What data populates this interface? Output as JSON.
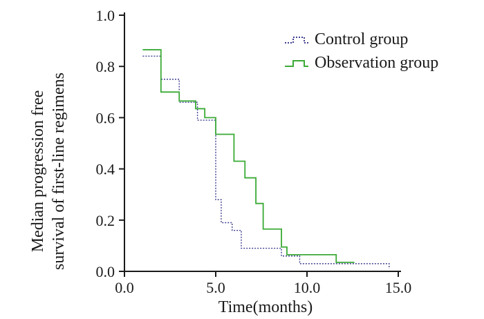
{
  "chart_data": {
    "type": "line",
    "subtype": "step (Kaplan-Meier survival curve)",
    "title": "",
    "xlabel": "Time(months)",
    "ylabel_lines": [
      "Median progression free",
      "survival of first-line regimens"
    ],
    "xlim": [
      0,
      15
    ],
    "ylim": [
      0,
      1.0
    ],
    "xticks": [
      0,
      5,
      10,
      15
    ],
    "xtick_labels": [
      "0.0",
      "5.0",
      "10.0",
      "15.0"
    ],
    "yticks": [
      0,
      0.2,
      0.4,
      0.6,
      0.8,
      1.0
    ],
    "ytick_labels": [
      "0.0",
      "0.2",
      "0.4",
      "0.6",
      "0.8",
      "1.0"
    ],
    "grid": false,
    "legend_position": "top-right",
    "series": [
      {
        "name": "Control group",
        "color": "#3d3d8f",
        "style": "dotted",
        "x": [
          1.0,
          2.0,
          3.0,
          4.0,
          5.0,
          5.3,
          5.9,
          6.4,
          8.6,
          9.6,
          14.5
        ],
        "y": [
          0.84,
          0.75,
          0.66,
          0.59,
          0.28,
          0.19,
          0.16,
          0.09,
          0.06,
          0.03,
          0.01
        ]
      },
      {
        "name": "Observation group",
        "color": "#3aaa35",
        "style": "solid",
        "x": [
          1.0,
          2.0,
          3.0,
          3.9,
          4.4,
          5.0,
          6.0,
          6.6,
          7.2,
          7.6,
          8.6,
          8.9,
          11.6,
          12.6
        ],
        "y": [
          0.865,
          0.7,
          0.665,
          0.635,
          0.6,
          0.535,
          0.43,
          0.365,
          0.265,
          0.165,
          0.095,
          0.065,
          0.035,
          0.035
        ]
      }
    ]
  }
}
